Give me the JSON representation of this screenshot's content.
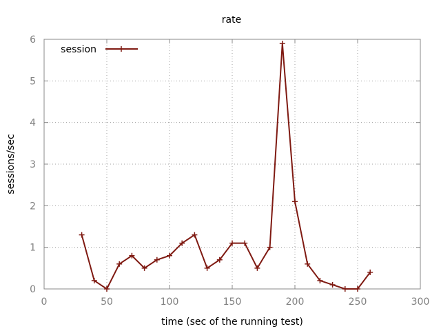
{
  "chart_data": {
    "type": "line",
    "title": "rate",
    "xlabel": "time (sec of the running test)",
    "ylabel": "sessions/sec",
    "xlim": [
      0,
      300
    ],
    "ylim": [
      0,
      6
    ],
    "xticks": [
      0,
      50,
      100,
      150,
      200,
      250,
      300
    ],
    "yticks": [
      0,
      1,
      2,
      3,
      4,
      5,
      6
    ],
    "grid": true,
    "legend_position": "top-left",
    "series": [
      {
        "name": "session",
        "color": "#7f1a12",
        "marker": "plus",
        "x": [
          30,
          40,
          50,
          60,
          70,
          80,
          90,
          100,
          110,
          120,
          130,
          140,
          150,
          160,
          170,
          180,
          190,
          200,
          210,
          220,
          230,
          240,
          250,
          260
        ],
        "y": [
          1.3,
          0.2,
          0.0,
          0.6,
          0.8,
          0.5,
          0.7,
          0.8,
          1.1,
          1.3,
          0.5,
          0.7,
          1.1,
          1.1,
          0.5,
          1.0,
          5.9,
          2.1,
          0.6,
          0.2,
          0.1,
          0.0,
          0.0,
          0.4
        ]
      }
    ]
  }
}
